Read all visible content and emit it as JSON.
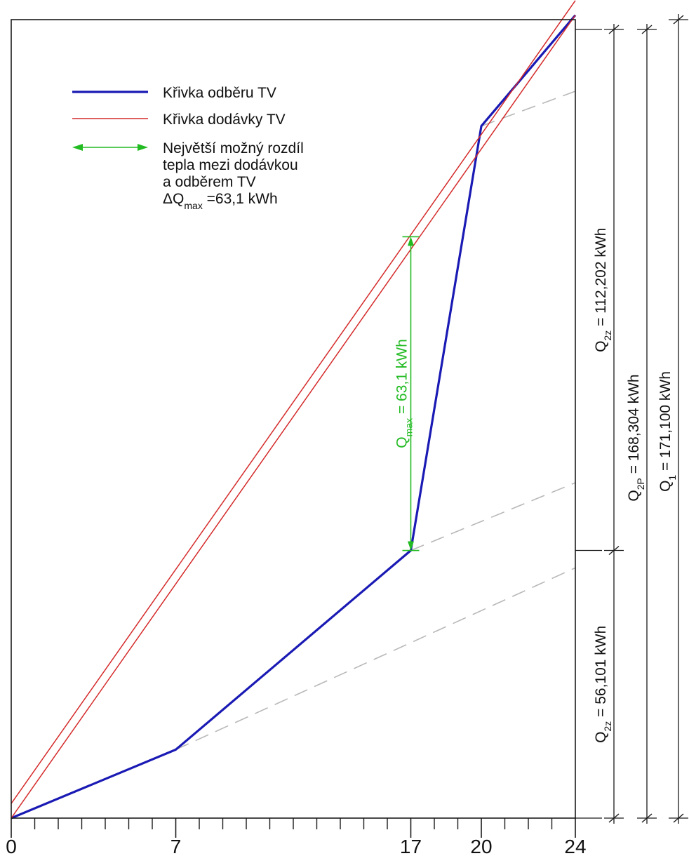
{
  "chart_data": {
    "type": "line",
    "title": "",
    "xlabel": "",
    "ylabel": "",
    "xlim": [
      0,
      24
    ],
    "x_tick_labels": [
      "0",
      "7",
      "17",
      "20",
      "24"
    ],
    "x_ticks_labeled": [
      0,
      7,
      17,
      20,
      24
    ],
    "x_minor_ticks": [
      1,
      2,
      3,
      4,
      5,
      6,
      8,
      9,
      10,
      11,
      12,
      13,
      14,
      15,
      16,
      18,
      19,
      21,
      22,
      23
    ],
    "legend": {
      "placement": "top-left",
      "entries": [
        {
          "key": "odber",
          "label": "Křivka odběru TV"
        },
        {
          "key": "dodavka",
          "label": "Křivka dodávky TV"
        },
        {
          "key": "rozdil",
          "lines": [
            "Největší možný rozdíl",
            "tepla mezi dodávkou",
            "a odběrem TV"
          ],
          "formula": {
            "prefix": "ΔQ",
            "sub": "max",
            "suffix": " =63,1 kWh"
          }
        }
      ]
    },
    "series": [
      {
        "key": "odber",
        "color": "#1a1ab4",
        "x": [
          0,
          7,
          17,
          20,
          24
        ],
        "y": [
          0,
          28.7,
          112.2,
          290.1,
          336.6
        ]
      },
      {
        "key": "dodavka_upper",
        "color": "#d42a2a",
        "x": [
          0,
          24
        ],
        "y": [
          6.1,
          342.7
        ]
      },
      {
        "key": "dodavka_lower",
        "color": "#d42a2a",
        "x": [
          0,
          24
        ],
        "y": [
          0,
          336.6
        ]
      }
    ],
    "guide_lines": [
      {
        "color": "#b8b8b8",
        "x": [
          7,
          24
        ],
        "y": [
          28.7,
          104.9
        ]
      },
      {
        "color": "#b8b8b8",
        "x": [
          17,
          24
        ],
        "y": [
          112.2,
          140.6
        ]
      },
      {
        "color": "#b8b8b8",
        "x": [
          20,
          24
        ],
        "y": [
          290.1,
          304.7
        ]
      }
    ],
    "difference_arrow": {
      "x": 17,
      "y_from": 112.2,
      "y_to": 243.7,
      "color": "#22bb22",
      "label": {
        "prefix": "Q",
        "sub": "max",
        "suffix": " = 63,1 kWh"
      }
    },
    "right_annotations": [
      {
        "key": "q2z_lower",
        "prefix": "Q",
        "sub": "2z",
        "suffix": " = 56,101 kWh"
      },
      {
        "key": "q2z_upper",
        "prefix": "Q",
        "sub": "2z",
        "suffix": " = 112,202 kWh"
      },
      {
        "key": "q2p",
        "prefix": "Q",
        "sub": "2P",
        "suffix": " = 168,304 kWh"
      },
      {
        "key": "q1",
        "prefix": "Q",
        "sub": "1",
        "suffix": " = 171,100 kWh"
      }
    ]
  }
}
